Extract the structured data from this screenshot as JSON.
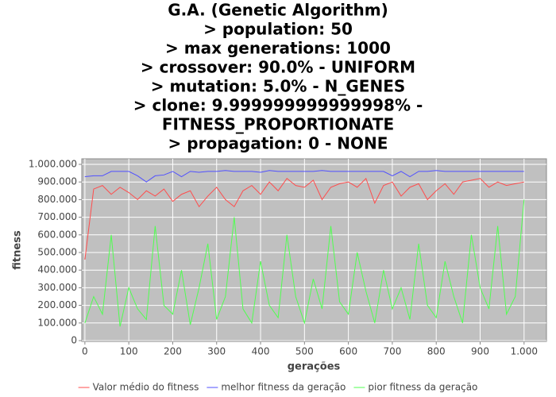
{
  "chart_data": {
    "type": "line",
    "title": [
      "G.A. (Genetic Algorithm)",
      ">  population:       50",
      ">  max generations:  1000",
      ">  crossover:        90.0% - UNIFORM",
      ">  mutation:         5.0% - N_GENES",
      ">  clone:            9.999999999999998% -",
      "FITNESS_PROPORTIONATE",
      ">  propagation:      0 - NONE"
    ],
    "x_label": "gerações",
    "y_label": "fitness",
    "x": [
      0,
      20,
      40,
      60,
      80,
      100,
      120,
      140,
      160,
      180,
      200,
      220,
      240,
      260,
      280,
      300,
      320,
      340,
      360,
      380,
      400,
      420,
      440,
      460,
      480,
      500,
      520,
      540,
      560,
      580,
      600,
      620,
      640,
      660,
      680,
      700,
      720,
      740,
      760,
      780,
      800,
      820,
      840,
      860,
      880,
      900,
      920,
      940,
      960,
      980,
      1000
    ],
    "series": [
      {
        "name": "Valor médio do fitness",
        "color": "#ff4d4d",
        "values": [
          460000,
          860000,
          880000,
          830000,
          870000,
          840000,
          800000,
          850000,
          820000,
          860000,
          790000,
          830000,
          850000,
          760000,
          820000,
          870000,
          800000,
          760000,
          850000,
          880000,
          830000,
          900000,
          850000,
          920000,
          880000,
          870000,
          910000,
          800000,
          870000,
          890000,
          900000,
          870000,
          920000,
          780000,
          880000,
          900000,
          820000,
          870000,
          890000,
          800000,
          850000,
          890000,
          830000,
          900000,
          910000,
          920000,
          870000,
          900000,
          880000,
          890000,
          900000
        ]
      },
      {
        "name": "melhor fitness da geração",
        "color": "#5050ff",
        "values": [
          930000,
          935000,
          935000,
          960000,
          960000,
          960000,
          935000,
          900000,
          935000,
          940000,
          960000,
          930000,
          960000,
          955000,
          960000,
          960000,
          965000,
          960000,
          960000,
          960000,
          955000,
          965000,
          960000,
          960000,
          960000,
          960000,
          960000,
          965000,
          960000,
          960000,
          960000,
          960000,
          960000,
          960000,
          960000,
          935000,
          960000,
          930000,
          960000,
          960000,
          965000,
          960000,
          960000,
          960000,
          960000,
          960000,
          960000,
          960000,
          960000,
          960000,
          960000
        ]
      },
      {
        "name": "pior fitness da geração",
        "color": "#50ff50",
        "values": [
          100000,
          250000,
          150000,
          600000,
          80000,
          300000,
          180000,
          120000,
          650000,
          200000,
          150000,
          400000,
          90000,
          300000,
          550000,
          120000,
          250000,
          700000,
          180000,
          100000,
          450000,
          200000,
          130000,
          600000,
          250000,
          100000,
          350000,
          180000,
          650000,
          220000,
          150000,
          500000,
          280000,
          100000,
          400000,
          180000,
          300000,
          120000,
          550000,
          200000,
          130000,
          450000,
          250000,
          100000,
          600000,
          300000,
          180000,
          650000,
          150000,
          250000,
          800000
        ]
      }
    ],
    "xlim": [
      -7,
      1051
    ],
    "xticks": [
      0,
      100,
      200,
      300,
      400,
      500,
      600,
      700,
      800,
      900,
      {
        "value": 1000,
        "label": "1.000"
      }
    ],
    "ylim": [
      -4500,
      1031500
    ],
    "yticks": [
      0,
      {
        "value": 100000,
        "label": "100.000"
      },
      {
        "value": 200000,
        "label": "200.000"
      },
      {
        "value": 300000,
        "label": "300.000"
      },
      {
        "value": 400000,
        "label": "400.000"
      },
      {
        "value": 500000,
        "label": "500.000"
      },
      {
        "value": 600000,
        "label": "600.000"
      },
      {
        "value": 700000,
        "label": "700.000"
      },
      {
        "value": 800000,
        "label": "800.000"
      },
      {
        "value": 900000,
        "label": "900.000"
      },
      {
        "value": 1000000,
        "label": "1.000.000"
      }
    ],
    "grid": true
  }
}
